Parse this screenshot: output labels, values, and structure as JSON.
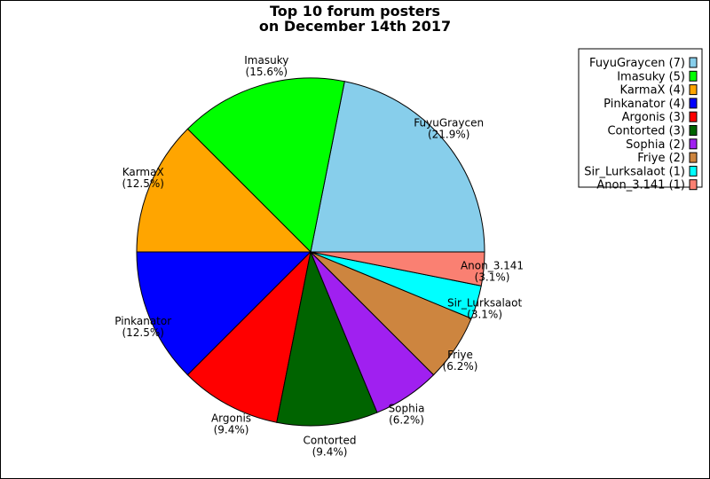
{
  "chart_data": {
    "type": "pie",
    "title": [
      "Top 10 forum posters",
      "on December 14th 2017"
    ],
    "slices": [
      {
        "name": "FuyuGraycen",
        "value": 7,
        "percent": "21.9%",
        "color": "#87ceeb"
      },
      {
        "name": "Imasuky",
        "value": 5,
        "percent": "15.6%",
        "color": "#00ff00"
      },
      {
        "name": "KarmaX",
        "value": 4,
        "percent": "12.5%",
        "color": "#ffa500"
      },
      {
        "name": "Pinkanator",
        "value": 4,
        "percent": "12.5%",
        "color": "#0000ff"
      },
      {
        "name": "Argonis",
        "value": 3,
        "percent": "9.4%",
        "color": "#ff0000"
      },
      {
        "name": "Contorted",
        "value": 3,
        "percent": "9.4%",
        "color": "#006400"
      },
      {
        "name": "Sophia",
        "value": 2,
        "percent": "6.2%",
        "color": "#a020f0"
      },
      {
        "name": "Friye",
        "value": 2,
        "percent": "6.2%",
        "color": "#cd853f"
      },
      {
        "name": "Sir_Lurksalaot",
        "value": 1,
        "percent": "3.1%",
        "color": "#00ffff"
      },
      {
        "name": "Anon_3.141",
        "value": 1,
        "percent": "3.1%",
        "color": "#fa8072"
      }
    ],
    "legend": [
      "FuyuGraycen (7)",
      "Imasuky (5)",
      "KarmaX (4)",
      "Pinkanator (4)",
      "Argonis (3)",
      "Contorted (3)",
      "Sophia (2)",
      "Friye (2)",
      "Sir_Lurksalaot (1)",
      "Anon_3.141 (1)"
    ],
    "legend_position": "top-right",
    "start": "right",
    "direction": "counterclockwise"
  }
}
